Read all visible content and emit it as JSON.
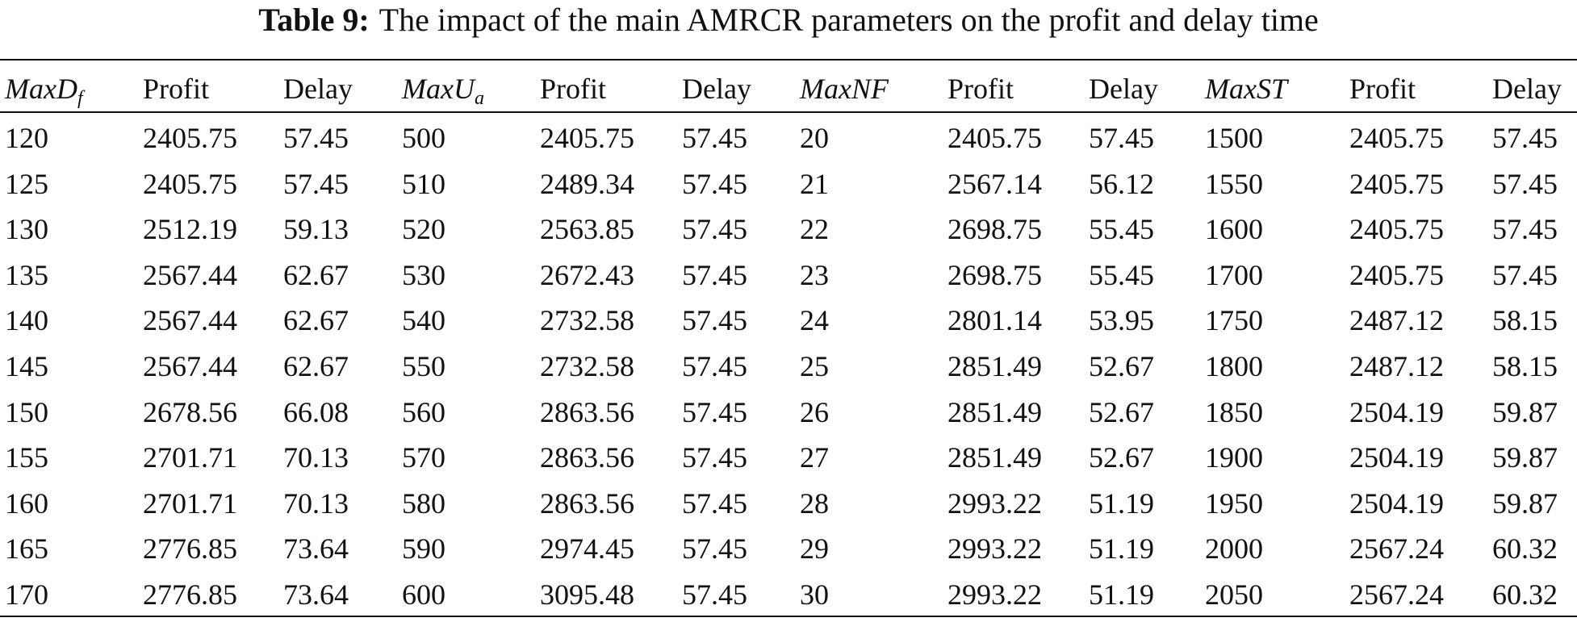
{
  "caption": {
    "label": "Table 9:",
    "text": "The impact of the main AMRCR parameters on the profit and delay time"
  },
  "table": {
    "header": [
      {
        "text": "MaxD",
        "sub": "f"
      },
      {
        "text": "Profit"
      },
      {
        "text": "Delay"
      },
      {
        "text": "MaxU",
        "sub": "a"
      },
      {
        "text": "Profit"
      },
      {
        "text": "Delay"
      },
      {
        "text": "MaxNF"
      },
      {
        "text": "Profit"
      },
      {
        "text": "Delay"
      },
      {
        "text": "MaxST"
      },
      {
        "text": "Profit"
      },
      {
        "text": "Delay"
      }
    ],
    "rows": [
      [
        "120",
        "2405.75",
        "57.45",
        "500",
        "2405.75",
        "57.45",
        "20",
        "2405.75",
        "57.45",
        "1500",
        "2405.75",
        "57.45"
      ],
      [
        "125",
        "2405.75",
        "57.45",
        "510",
        "2489.34",
        "57.45",
        "21",
        "2567.14",
        "56.12",
        "1550",
        "2405.75",
        "57.45"
      ],
      [
        "130",
        "2512.19",
        "59.13",
        "520",
        "2563.85",
        "57.45",
        "22",
        "2698.75",
        "55.45",
        "1600",
        "2405.75",
        "57.45"
      ],
      [
        "135",
        "2567.44",
        "62.67",
        "530",
        "2672.43",
        "57.45",
        "23",
        "2698.75",
        "55.45",
        "1700",
        "2405.75",
        "57.45"
      ],
      [
        "140",
        "2567.44",
        "62.67",
        "540",
        "2732.58",
        "57.45",
        "24",
        "2801.14",
        "53.95",
        "1750",
        "2487.12",
        "58.15"
      ],
      [
        "145",
        "2567.44",
        "62.67",
        "550",
        "2732.58",
        "57.45",
        "25",
        "2851.49",
        "52.67",
        "1800",
        "2487.12",
        "58.15"
      ],
      [
        "150",
        "2678.56",
        "66.08",
        "560",
        "2863.56",
        "57.45",
        "26",
        "2851.49",
        "52.67",
        "1850",
        "2504.19",
        "59.87"
      ],
      [
        "155",
        "2701.71",
        "70.13",
        "570",
        "2863.56",
        "57.45",
        "27",
        "2851.49",
        "52.67",
        "1900",
        "2504.19",
        "59.87"
      ],
      [
        "160",
        "2701.71",
        "70.13",
        "580",
        "2863.56",
        "57.45",
        "28",
        "2993.22",
        "51.19",
        "1950",
        "2504.19",
        "59.87"
      ],
      [
        "165",
        "2776.85",
        "73.64",
        "590",
        "2974.45",
        "57.45",
        "29",
        "2993.22",
        "51.19",
        "2000",
        "2567.24",
        "60.32"
      ],
      [
        "170",
        "2776.85",
        "73.64",
        "600",
        "3095.48",
        "57.45",
        "30",
        "2993.22",
        "51.19",
        "2050",
        "2567.24",
        "60.32"
      ]
    ]
  }
}
